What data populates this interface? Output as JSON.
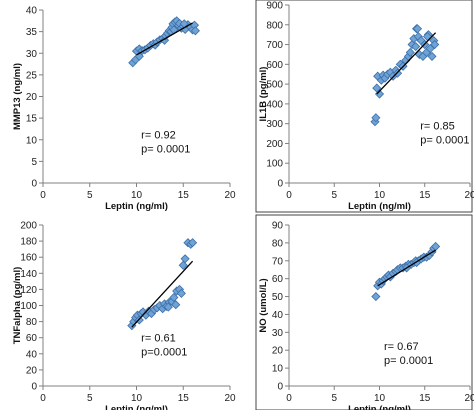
{
  "chart_data": [
    {
      "type": "scatter",
      "xlabel": "Leptin (ng/ml)",
      "ylabel": "MMP13 (ng/ml)",
      "xlim": [
        0,
        20
      ],
      "ylim": [
        0,
        40
      ],
      "xticks": [
        0,
        5,
        10,
        15,
        20
      ],
      "yticks": [
        0,
        5,
        10,
        15,
        20,
        25,
        30,
        35,
        40
      ],
      "frame": false,
      "marker_color": "#6fa3d6",
      "marker_stroke": "#3d6fa8",
      "points": [
        [
          9.6,
          27.8
        ],
        [
          9.9,
          28.5
        ],
        [
          10.3,
          29.3
        ],
        [
          10.0,
          30.5
        ],
        [
          10.3,
          31.0
        ],
        [
          10.6,
          30.6
        ],
        [
          10.9,
          30.8
        ],
        [
          11.2,
          31.2
        ],
        [
          11.5,
          31.8
        ],
        [
          11.8,
          32.2
        ],
        [
          12.0,
          31.9
        ],
        [
          12.2,
          32.6
        ],
        [
          12.5,
          33.1
        ],
        [
          12.8,
          33.4
        ],
        [
          13.0,
          33.0
        ],
        [
          13.1,
          34.0
        ],
        [
          13.3,
          34.6
        ],
        [
          13.5,
          35.2
        ],
        [
          13.7,
          35.0
        ],
        [
          13.8,
          36.0
        ],
        [
          13.9,
          36.8
        ],
        [
          14.1,
          37.2
        ],
        [
          14.3,
          37.5
        ],
        [
          14.5,
          36.4
        ],
        [
          14.6,
          36.9
        ],
        [
          14.8,
          35.8
        ],
        [
          15.0,
          36.2
        ],
        [
          15.2,
          35.5
        ],
        [
          15.5,
          36.6
        ],
        [
          15.8,
          36.0
        ],
        [
          16.0,
          35.4
        ],
        [
          16.2,
          36.5
        ],
        [
          16.3,
          35.2
        ],
        [
          14.0,
          35.4
        ],
        [
          15.1,
          36.8
        ]
      ],
      "trendline": {
        "x": [
          10.0,
          16.0
        ],
        "y": [
          29.6,
          37.0
        ]
      },
      "stats": [
        "r= 0.92",
        "p= 0.0001"
      ],
      "stats_pos": [
        10.5,
        10.3
      ]
    },
    {
      "type": "scatter",
      "xlabel": "Leptin (ng/ml)",
      "ylabel": "IL1B (pg/ml)",
      "xlim": [
        0,
        20
      ],
      "ylim": [
        0,
        900
      ],
      "xticks": [
        0,
        5,
        10,
        15,
        20
      ],
      "yticks": [
        0,
        100,
        200,
        300,
        400,
        500,
        600,
        700,
        800,
        900
      ],
      "frame": true,
      "marker_color": "#6fa3d6",
      "marker_stroke": "#3d6fa8",
      "points": [
        [
          9.5,
          310
        ],
        [
          9.6,
          330
        ],
        [
          9.7,
          480
        ],
        [
          9.8,
          540
        ],
        [
          10.0,
          450
        ],
        [
          10.2,
          520
        ],
        [
          10.4,
          545
        ],
        [
          10.6,
          530
        ],
        [
          10.9,
          550
        ],
        [
          11.2,
          560
        ],
        [
          11.5,
          540
        ],
        [
          11.8,
          570
        ],
        [
          12.0,
          555
        ],
        [
          12.3,
          600
        ],
        [
          12.6,
          590
        ],
        [
          12.9,
          620
        ],
        [
          13.2,
          640
        ],
        [
          13.4,
          660
        ],
        [
          13.6,
          700
        ],
        [
          13.8,
          730
        ],
        [
          14.0,
          690
        ],
        [
          14.1,
          780
        ],
        [
          14.3,
          740
        ],
        [
          14.4,
          650
        ],
        [
          14.6,
          720
        ],
        [
          14.8,
          640
        ],
        [
          15.0,
          700
        ],
        [
          15.2,
          660
        ],
        [
          15.4,
          750
        ],
        [
          15.6,
          680
        ],
        [
          15.8,
          640
        ],
        [
          16.0,
          720
        ],
        [
          16.1,
          700
        ],
        [
          14.2,
          780
        ],
        [
          15.3,
          740
        ]
      ],
      "trendline": {
        "x": [
          9.7,
          16.2
        ],
        "y": [
          450,
          760
        ]
      },
      "stats": [
        "r= 0.85",
        "p= 0.0001"
      ],
      "stats_pos": [
        14.5,
        270
      ]
    },
    {
      "type": "scatter",
      "xlabel": "Leptin (ng/ml)",
      "ylabel": "TNFalpha (pg/ml)",
      "xlim": [
        0,
        20
      ],
      "ylim": [
        0,
        200
      ],
      "xticks": [
        0,
        5,
        10,
        15,
        20
      ],
      "yticks": [
        0,
        20,
        40,
        60,
        80,
        100,
        120,
        140,
        160,
        180,
        200
      ],
      "frame": false,
      "marker_color": "#6fa3d6",
      "marker_stroke": "#3d6fa8",
      "points": [
        [
          9.5,
          75
        ],
        [
          9.7,
          80
        ],
        [
          9.9,
          85
        ],
        [
          10.1,
          88
        ],
        [
          10.3,
          82
        ],
        [
          10.5,
          90
        ],
        [
          10.7,
          92
        ],
        [
          11.0,
          88
        ],
        [
          11.3,
          93
        ],
        [
          11.6,
          90
        ],
        [
          11.9,
          95
        ],
        [
          12.2,
          97
        ],
        [
          12.5,
          100
        ],
        [
          12.8,
          96
        ],
        [
          13.0,
          102
        ],
        [
          13.2,
          99
        ],
        [
          13.5,
          104
        ],
        [
          13.8,
          105
        ],
        [
          14.0,
          110
        ],
        [
          14.3,
          118
        ],
        [
          14.6,
          120
        ],
        [
          14.8,
          115
        ],
        [
          15.0,
          150
        ],
        [
          15.2,
          158
        ],
        [
          15.5,
          178
        ],
        [
          15.8,
          176
        ],
        [
          16.0,
          178
        ],
        [
          14.2,
          101
        ],
        [
          13.4,
          98
        ]
      ],
      "trendline": {
        "x": [
          9.5,
          16.0
        ],
        "y": [
          73,
          155
        ]
      },
      "stats": [
        "r= 0.61",
        "p=0.0001"
      ],
      "stats_pos": [
        10.5,
        55
      ]
    },
    {
      "type": "scatter",
      "xlabel": "Leptin (ng/ml)",
      "ylabel": "NO (umol/L)",
      "xlim": [
        0,
        20
      ],
      "ylim": [
        0,
        90
      ],
      "xticks": [
        0,
        5,
        10,
        15,
        20
      ],
      "yticks": [
        0,
        10,
        20,
        30,
        40,
        50,
        60,
        70,
        80,
        90
      ],
      "frame": true,
      "marker_color": "#6fa3d6",
      "marker_stroke": "#3d6fa8",
      "points": [
        [
          9.6,
          50
        ],
        [
          9.8,
          56
        ],
        [
          10.0,
          58
        ],
        [
          10.2,
          57
        ],
        [
          10.4,
          59
        ],
        [
          10.6,
          60
        ],
        [
          10.8,
          61
        ],
        [
          11.0,
          62
        ],
        [
          11.2,
          61
        ],
        [
          11.5,
          63
        ],
        [
          11.8,
          64
        ],
        [
          12.0,
          65
        ],
        [
          12.3,
          66
        ],
        [
          12.6,
          66
        ],
        [
          12.9,
          67
        ],
        [
          13.2,
          68
        ],
        [
          13.5,
          68
        ],
        [
          13.8,
          69
        ],
        [
          14.0,
          70
        ],
        [
          14.3,
          70
        ],
        [
          14.6,
          71
        ],
        [
          14.9,
          72
        ],
        [
          15.2,
          72
        ],
        [
          15.5,
          73
        ],
        [
          15.8,
          75
        ],
        [
          16.0,
          77
        ],
        [
          16.2,
          78
        ],
        [
          13.0,
          66
        ],
        [
          14.1,
          69
        ]
      ],
      "trendline": {
        "x": [
          9.8,
          16.2
        ],
        "y": [
          56,
          76
        ]
      },
      "stats": [
        "r= 0.67",
        "p= 0.0001"
      ],
      "stats_pos": [
        10.5,
        20
      ]
    }
  ]
}
